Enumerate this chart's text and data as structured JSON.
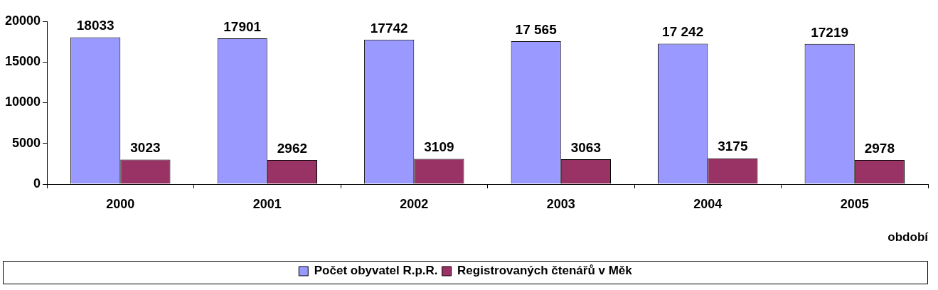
{
  "chart_data": {
    "type": "bar",
    "xlabel": "období",
    "categories": [
      "2000",
      "2001",
      "2002",
      "2003",
      "2004",
      "2005"
    ],
    "series": [
      {
        "name": "Počet obyvatel R.p.R.",
        "color": "#9999ff",
        "values": [
          18033,
          17901,
          17742,
          17565,
          17242,
          17219
        ],
        "value_labels": [
          "18033",
          "17901",
          "17742",
          "17 565",
          "17 242",
          "17219"
        ]
      },
      {
        "name": "Registrovaných čtenářů v Měk",
        "color": "#993366",
        "values": [
          3023,
          2962,
          3109,
          3063,
          3175,
          2978
        ],
        "value_labels": [
          "3023",
          "2962",
          "3109",
          "3063",
          "3175",
          "2978"
        ]
      }
    ],
    "ylim": [
      0,
      20000
    ],
    "yticks": [
      0,
      5000,
      10000,
      15000,
      20000
    ],
    "grid": false,
    "legend": "bottom"
  }
}
